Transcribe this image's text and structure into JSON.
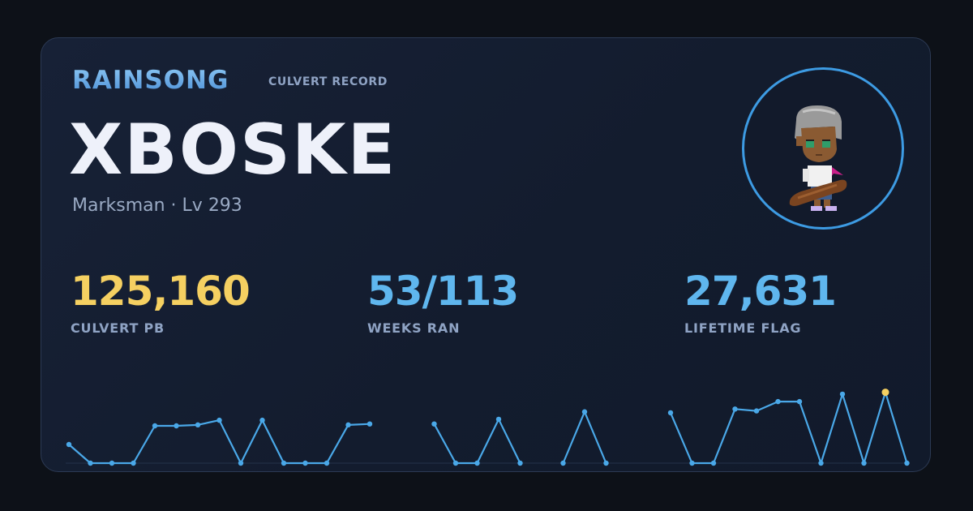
{
  "brand": "RAINSONG",
  "subtitle": "CULVERT RECORD",
  "character": {
    "name": "XBOSKE",
    "class_level": "Marksman · Lv 293"
  },
  "stats": [
    {
      "value": "125,160",
      "label": "CULVERT PB",
      "color": "#f5d061"
    },
    {
      "value": "53/113",
      "label": "WEEKS RAN",
      "color": "#5fb6ee"
    },
    {
      "value": "27,631",
      "label": "LIFETIME FLAG",
      "color": "#5fb6ee"
    }
  ],
  "colors": {
    "line": "#4aa8e8",
    "highlight": "#f5d061",
    "card_border": "#2c3a54",
    "avatar_ring": "#3d9be3"
  },
  "chart_data": {
    "type": "line",
    "series": [
      {
        "values": [
          10,
          0,
          0,
          0,
          20,
          20,
          20.5,
          23,
          0,
          23,
          0,
          0,
          0,
          20.5,
          21,
          null,
          null,
          21,
          0,
          0,
          23.5,
          0,
          null,
          0,
          27.5,
          0,
          null,
          null,
          27,
          0,
          0,
          29,
          28,
          33,
          33,
          0,
          37,
          0,
          38,
          0
        ]
      }
    ],
    "highlight_index": 38,
    "ylim": [
      0,
      40
    ],
    "grid": false,
    "legend": "none"
  }
}
